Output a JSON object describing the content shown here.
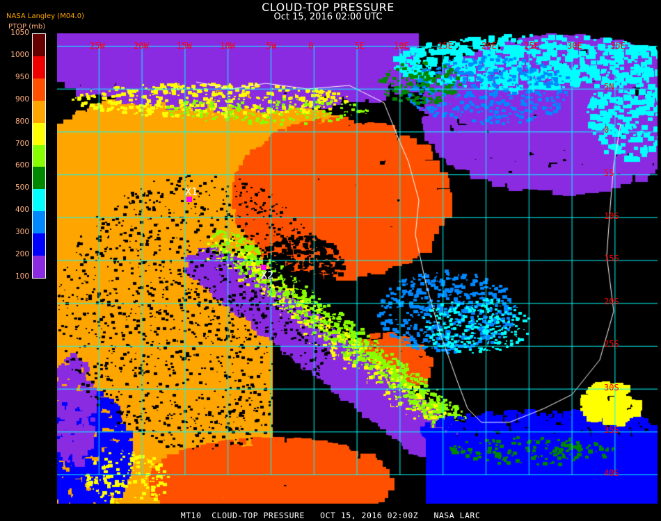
{
  "header": {
    "title": "CLOUD-TOP PRESSURE",
    "subtitle": "Oct 15, 2016 02:00 UTC",
    "source": "NASA Langley (M04.0)"
  },
  "legend": {
    "title": "PTOP (mb)",
    "ticks": [
      "1050",
      "1000",
      "950",
      "900",
      "800",
      "700",
      "600",
      "500",
      "400",
      "300",
      "200",
      "100"
    ],
    "colors": [
      "#660000",
      "#ee0000",
      "#ff5000",
      "#ffa500",
      "#ffff00",
      "#88ff00",
      "#008800",
      "#00ffff",
      "#0088ff",
      "#0000ff",
      "#8a2be2"
    ]
  },
  "map": {
    "lon_labels": [
      "25W",
      "20W",
      "15W",
      "10W",
      "5W",
      "0",
      "5E",
      "10E",
      "15E",
      "20E",
      "25E",
      "30E",
      "35E"
    ],
    "lat_labels": [
      "5N",
      "0",
      "5S",
      "10S",
      "15S",
      "20S",
      "25S",
      "30S",
      "35S",
      "40S"
    ],
    "grid_color": "#00ffff",
    "label_color": "#ff0000",
    "markers": [
      {
        "label": "X1",
        "color": "#ff00ff"
      },
      {
        "label": "X2",
        "color": "#ff00ff"
      }
    ]
  },
  "footer": "MT10  CLOUD-TOP PRESSURE   OCT 15, 2016 02:00Z   NASA LARC"
}
